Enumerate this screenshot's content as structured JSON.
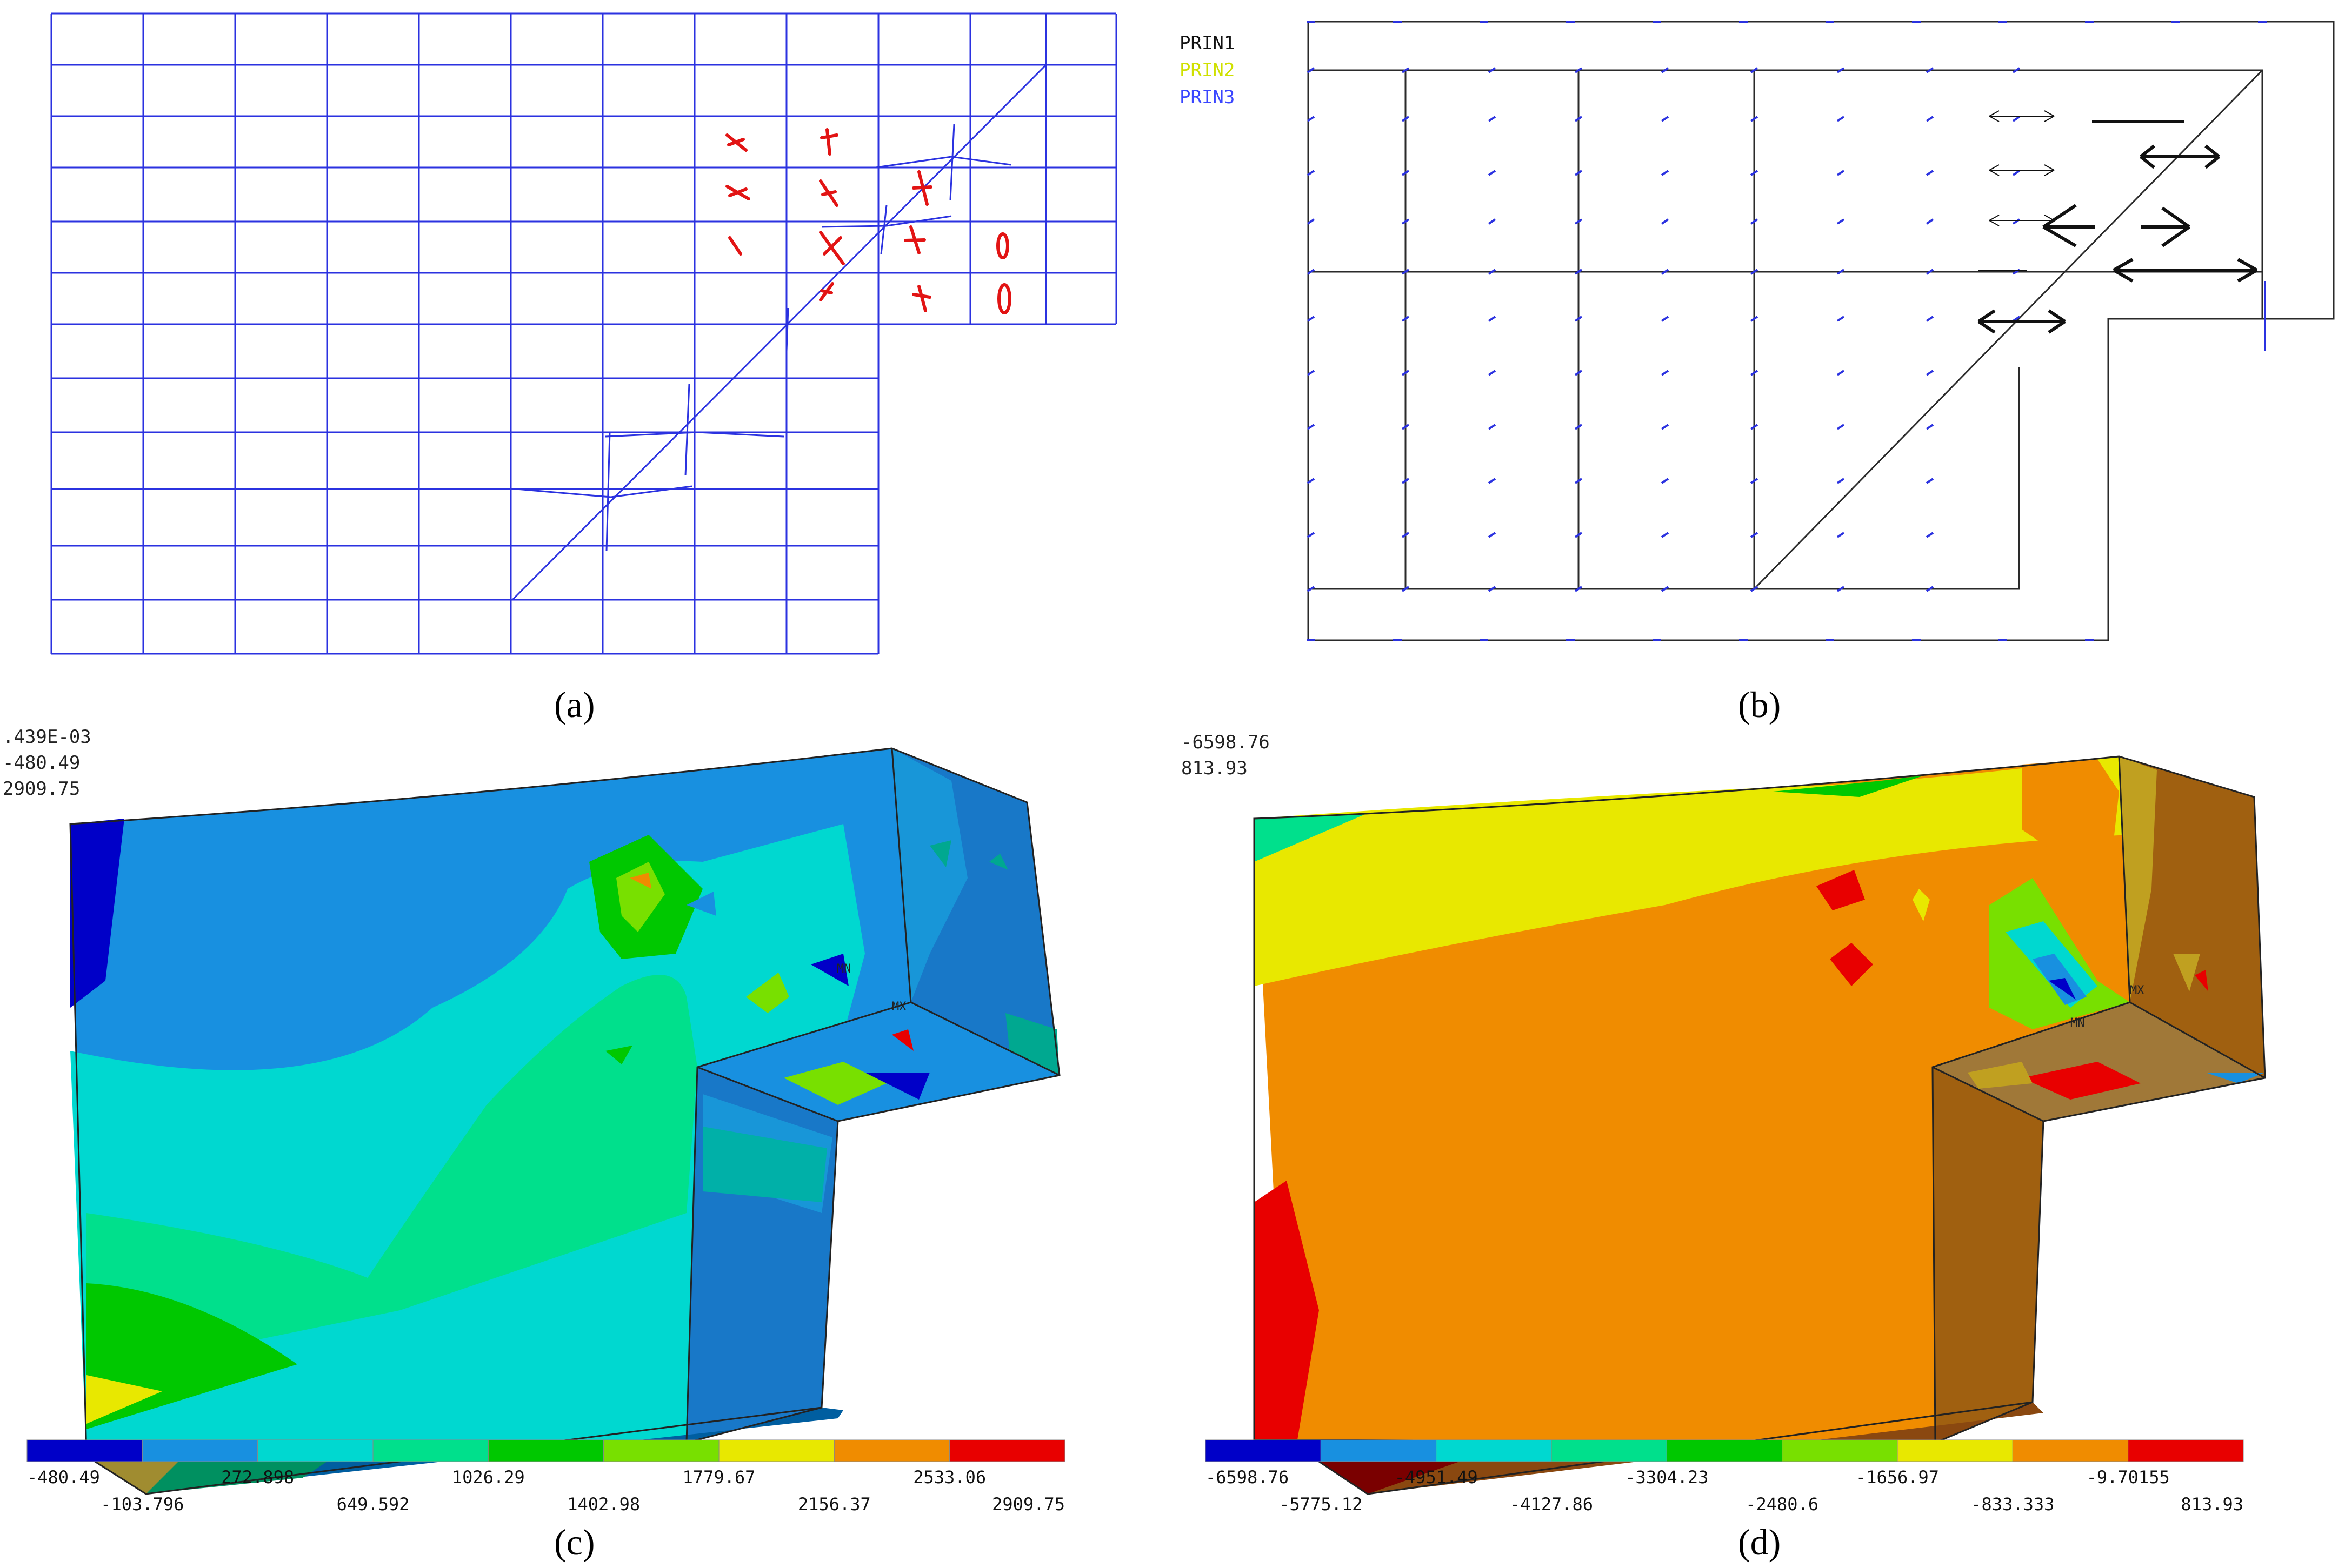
{
  "captions": {
    "a": "(a)",
    "b": "(b)",
    "c": "(c)",
    "d": "(d)"
  },
  "panel_b": {
    "legend": [
      {
        "label": "PRIN1",
        "color": "#111111"
      },
      {
        "label": "PRIN2",
        "color": "#cfe000"
      },
      {
        "label": "PRIN3",
        "color": "#3a46ff"
      }
    ]
  },
  "panel_c": {
    "corner_lines": [
      ".439E-03",
      "-480.49",
      "2909.75"
    ],
    "mn_label": "MN",
    "mx_label": "MX",
    "colorbar_ticks": [
      "-480.49",
      "-103.796",
      "272.898",
      "649.592",
      "1026.29",
      "1402.98",
      "1779.67",
      "2156.37",
      "2533.06",
      "2909.75"
    ],
    "colors": [
      "#0000c8",
      "#1890e0",
      "#00d8d0",
      "#00e08c",
      "#00c800",
      "#78e000",
      "#e8e800",
      "#f08c00",
      "#e80000"
    ]
  },
  "panel_d": {
    "corner_lines": [
      "-6598.76",
      "813.93"
    ],
    "mn_label": "MN",
    "mx_label": "MX",
    "colorbar_ticks": [
      "-6598.76",
      "-5775.12",
      "-4951.49",
      "-4127.86",
      "-3304.23",
      "-2480.6",
      "-1656.97",
      "-833.333",
      "-9.70155",
      "813.93"
    ],
    "colors": [
      "#0000c8",
      "#1890e0",
      "#00d8d0",
      "#00e08c",
      "#00c800",
      "#78e000",
      "#e8e800",
      "#f08c00",
      "#e80000"
    ]
  }
}
